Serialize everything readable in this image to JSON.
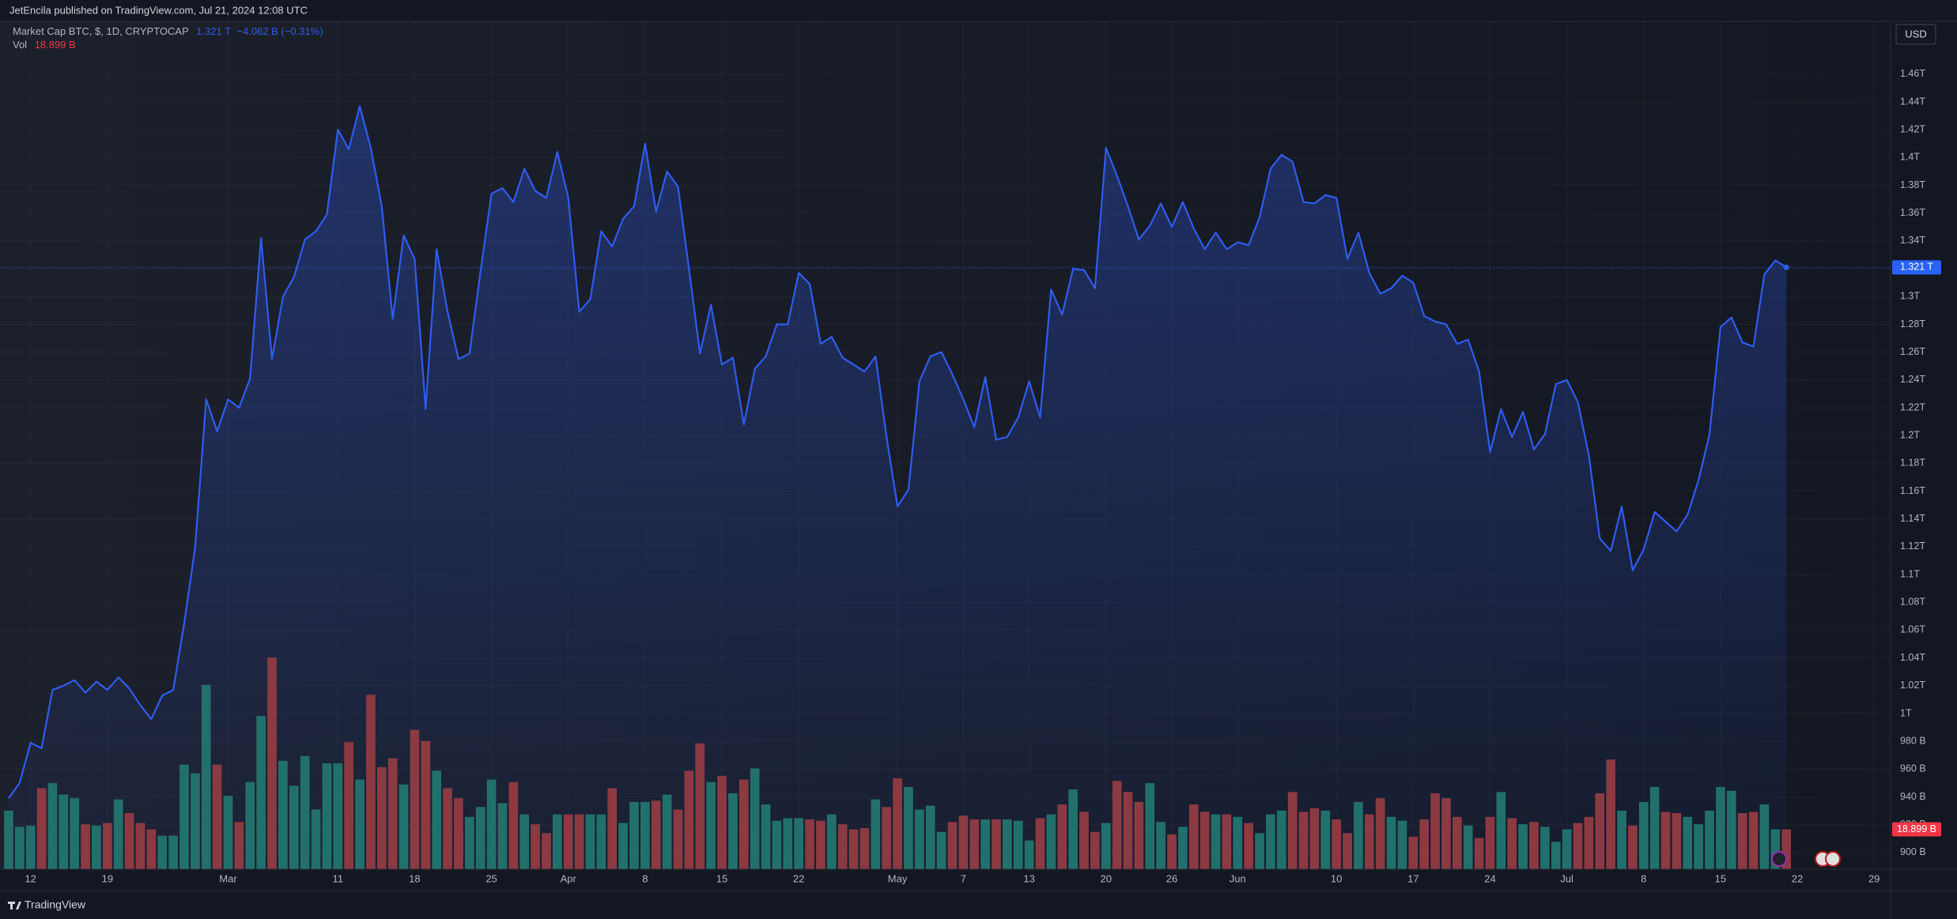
{
  "header": {
    "text": "JetEncila published on TradingView.com, Jul 21, 2024 12:08 UTC"
  },
  "footer": {
    "brand": "TradingView"
  },
  "chart_data": {
    "type": "area",
    "currency": "USD",
    "grid": true,
    "ylim": [
      888,
      1498
    ],
    "yticks": [
      {
        "value": 1460,
        "label": "1.46T"
      },
      {
        "value": 1440,
        "label": "1.44T"
      },
      {
        "value": 1420,
        "label": "1.42T"
      },
      {
        "value": 1400,
        "label": "1.4T"
      },
      {
        "value": 1380,
        "label": "1.38T"
      },
      {
        "value": 1360,
        "label": "1.36T"
      },
      {
        "value": 1340,
        "label": "1.34T"
      },
      {
        "value": 1320,
        "label": "1.32T"
      },
      {
        "value": 1300,
        "label": "1.3T"
      },
      {
        "value": 1280,
        "label": "1.28T"
      },
      {
        "value": 1260,
        "label": "1.26T"
      },
      {
        "value": 1240,
        "label": "1.24T"
      },
      {
        "value": 1220,
        "label": "1.22T"
      },
      {
        "value": 1200,
        "label": "1.2T"
      },
      {
        "value": 1180,
        "label": "1.18T"
      },
      {
        "value": 1160,
        "label": "1.16T"
      },
      {
        "value": 1140,
        "label": "1.14T"
      },
      {
        "value": 1120,
        "label": "1.12T"
      },
      {
        "value": 1100,
        "label": "1.1T"
      },
      {
        "value": 1080,
        "label": "1.08T"
      },
      {
        "value": 1060,
        "label": "1.06T"
      },
      {
        "value": 1040,
        "label": "1.04T"
      },
      {
        "value": 1020,
        "label": "1.02T"
      },
      {
        "value": 1000,
        "label": "1T"
      },
      {
        "value": 980,
        "label": "980 B"
      },
      {
        "value": 960,
        "label": "960 B"
      },
      {
        "value": 940,
        "label": "940 B"
      },
      {
        "value": 920,
        "label": "920 B"
      },
      {
        "value": 900,
        "label": "900 B"
      }
    ],
    "categories": [
      null,
      null,
      "12",
      null,
      null,
      null,
      null,
      null,
      null,
      "19",
      null,
      null,
      null,
      null,
      null,
      null,
      null,
      null,
      null,
      null,
      "Mar",
      null,
      null,
      null,
      null,
      null,
      null,
      null,
      null,
      null,
      "11",
      null,
      null,
      null,
      null,
      null,
      null,
      "18",
      null,
      null,
      null,
      null,
      null,
      null,
      "25",
      null,
      null,
      null,
      null,
      null,
      null,
      "Apr",
      null,
      null,
      null,
      null,
      null,
      null,
      "8",
      null,
      null,
      null,
      null,
      null,
      null,
      "15",
      null,
      null,
      null,
      null,
      null,
      null,
      "22",
      null,
      null,
      null,
      null,
      null,
      null,
      null,
      null,
      "May",
      null,
      null,
      null,
      null,
      null,
      "7",
      null,
      null,
      null,
      null,
      null,
      "13",
      null,
      null,
      null,
      null,
      null,
      null,
      "20",
      null,
      null,
      null,
      null,
      null,
      "26",
      null,
      null,
      null,
      null,
      null,
      "Jun",
      null,
      null,
      null,
      null,
      null,
      null,
      null,
      null,
      "10",
      null,
      null,
      null,
      null,
      null,
      null,
      "17",
      null,
      null,
      null,
      null,
      null,
      null,
      "24",
      null,
      null,
      null,
      null,
      null,
      null,
      "Jul",
      null,
      null,
      null,
      null,
      null,
      null,
      "8",
      null,
      null,
      null,
      null,
      null,
      null,
      "15",
      null,
      null,
      null,
      null,
      null,
      null,
      "22",
      null,
      null,
      null,
      null,
      null,
      null,
      "29",
      null
    ],
    "series": [
      {
        "name": "Market Cap BTC, $, 1D, CRYPTOCAP",
        "color": "#2f5cf0",
        "last_label": "1.321 T",
        "change_label": "−4.062 B (−0.31%)",
        "values": [
          939,
          950,
          979,
          975,
          1017,
          1020,
          1024,
          1015,
          1023,
          1017,
          1026,
          1018,
          1006,
          996,
          1013,
          1017,
          1065,
          1120,
          1226,
          1203,
          1226,
          1220,
          1241,
          1342,
          1255,
          1300,
          1314,
          1341,
          1347,
          1359,
          1420,
          1406,
          1437,
          1407,
          1365,
          1284,
          1344,
          1327,
          1219,
          1334,
          1289,
          1255,
          1259,
          1318,
          1374,
          1378,
          1368,
          1392,
          1376,
          1371,
          1404,
          1371,
          1289,
          1298,
          1347,
          1336,
          1356,
          1365,
          1410,
          1361,
          1390,
          1379,
          1320,
          1259,
          1294,
          1251,
          1256,
          1208,
          1248,
          1257,
          1280,
          1280,
          1317,
          1309,
          1266,
          1271,
          1256,
          1251,
          1246,
          1257,
          1199,
          1149,
          1161,
          1239,
          1257,
          1260,
          1244,
          1226,
          1206,
          1242,
          1197,
          1199,
          1213,
          1239,
          1213,
          1305,
          1287,
          1320,
          1319,
          1306,
          1407,
          1387,
          1365,
          1341,
          1351,
          1367,
          1350,
          1368,
          1349,
          1334,
          1346,
          1334,
          1339,
          1337,
          1357,
          1392,
          1402,
          1397,
          1368,
          1367,
          1373,
          1371,
          1327,
          1346,
          1317,
          1302,
          1306,
          1315,
          1310,
          1286,
          1282,
          1280,
          1266,
          1269,
          1246,
          1188,
          1219,
          1199,
          1217,
          1190,
          1201,
          1237,
          1240,
          1224,
          1186,
          1126,
          1117,
          1149,
          1103,
          1118,
          1145,
          1138,
          1131,
          1143,
          1168,
          1201,
          1278,
          1285,
          1267,
          1264,
          1316,
          1326,
          1321,
          null,
          null,
          null,
          null,
          null,
          null,
          null,
          null,
          null
        ]
      },
      {
        "name": "Vol",
        "type": "bar",
        "up_color": "#22706b",
        "down_color": "#8b3a42",
        "label_color": "#f23645",
        "last_label": "18.899 B",
        "values": [
          27.8,
          20.1,
          20.7,
          38.4,
          40.8,
          35.4,
          33.7,
          21.3,
          20.7,
          21.9,
          33.1,
          26.6,
          21.9,
          18.9,
          15.9,
          15.9,
          49.6,
          45.5,
          87.4,
          49.6,
          34.8,
          22.4,
          41.3,
          72.6,
          100.4,
          51.4,
          39.6,
          53.7,
          28.3,
          50.2,
          50.2,
          60.2,
          42.5,
          82.7,
          48.4,
          52.6,
          40.2,
          66.1,
          60.8,
          46.7,
          38.4,
          33.7,
          24.8,
          29.5,
          42.5,
          31.3,
          41.3,
          26.0,
          21.3,
          17.1,
          26.0,
          26.0,
          26.0,
          26.0,
          26.0,
          38.4,
          21.9,
          31.9,
          31.9,
          32.5,
          35.4,
          28.3,
          46.7,
          59.7,
          41.3,
          44.3,
          36.0,
          42.5,
          47.8,
          30.7,
          23.0,
          24.2,
          24.2,
          23.6,
          23.0,
          26.0,
          21.3,
          18.9,
          19.5,
          33.1,
          29.5,
          43.1,
          39.0,
          28.3,
          30.1,
          17.7,
          22.4,
          25.4,
          23.6,
          23.6,
          23.6,
          23.6,
          23.0,
          13.6,
          24.2,
          26.0,
          30.7,
          37.8,
          27.2,
          17.7,
          21.9,
          41.9,
          36.6,
          31.9,
          40.8,
          22.4,
          16.5,
          20.1,
          30.7,
          27.2,
          26.0,
          26.0,
          24.8,
          21.9,
          17.1,
          26.0,
          27.8,
          36.6,
          27.2,
          28.9,
          27.8,
          23.6,
          17.1,
          31.9,
          26.0,
          33.7,
          24.8,
          23.0,
          15.4,
          23.6,
          36.0,
          33.7,
          24.8,
          20.7,
          14.8,
          24.8,
          36.6,
          24.2,
          21.3,
          22.4,
          20.1,
          13.0,
          18.9,
          21.9,
          24.8,
          36.0,
          52.0,
          27.8,
          20.7,
          31.9,
          39.0,
          27.2,
          26.6,
          24.8,
          21.3,
          27.8,
          39.0,
          37.2,
          26.6,
          27.2,
          30.7,
          18.9,
          18.899,
          null,
          null,
          null,
          null,
          null,
          null,
          null,
          null,
          null
        ]
      }
    ]
  }
}
